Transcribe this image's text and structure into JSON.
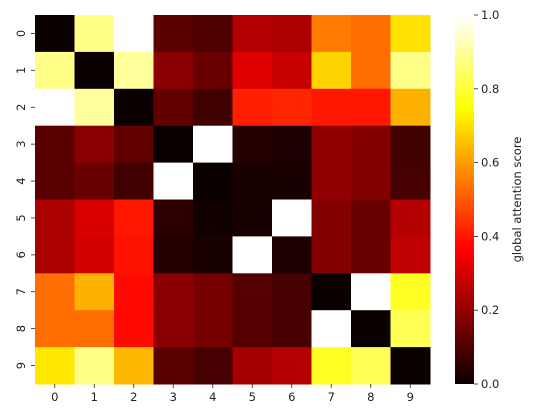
{
  "chart_data": {
    "type": "heatmap",
    "x_labels": [
      "0",
      "1",
      "2",
      "3",
      "4",
      "5",
      "6",
      "7",
      "8",
      "9"
    ],
    "y_labels": [
      "0",
      "1",
      "2",
      "3",
      "4",
      "5",
      "6",
      "7",
      "8",
      "9"
    ],
    "values": [
      [
        0.0,
        0.88,
        1.0,
        0.12,
        0.1,
        0.25,
        0.24,
        0.55,
        0.53,
        0.7
      ],
      [
        0.88,
        0.0,
        0.9,
        0.19,
        0.14,
        0.32,
        0.28,
        0.68,
        0.53,
        0.88
      ],
      [
        1.0,
        0.9,
        0.0,
        0.13,
        0.08,
        0.41,
        0.42,
        0.4,
        0.4,
        0.63
      ],
      [
        0.12,
        0.19,
        0.13,
        0.0,
        1.0,
        0.04,
        0.03,
        0.2,
        0.18,
        0.08
      ],
      [
        0.12,
        0.14,
        0.08,
        1.0,
        0.0,
        0.02,
        0.02,
        0.2,
        0.18,
        0.09
      ],
      [
        0.24,
        0.31,
        0.4,
        0.05,
        0.01,
        0.02,
        1.0,
        0.18,
        0.14,
        0.25
      ],
      [
        0.24,
        0.3,
        0.39,
        0.04,
        0.02,
        1.0,
        0.03,
        0.18,
        0.14,
        0.27
      ],
      [
        0.53,
        0.63,
        0.38,
        0.19,
        0.16,
        0.11,
        0.09,
        0.0,
        1.0,
        0.78
      ],
      [
        0.53,
        0.53,
        0.38,
        0.19,
        0.16,
        0.11,
        0.09,
        1.0,
        0.0,
        0.83
      ],
      [
        0.71,
        0.88,
        0.64,
        0.12,
        0.09,
        0.23,
        0.25,
        0.78,
        0.83,
        0.0
      ]
    ],
    "colormap": "hot",
    "vmin": 0.0,
    "vmax": 1.0,
    "colorbar": {
      "label": "global attention score",
      "ticks": [
        0.0,
        0.2,
        0.4,
        0.6,
        0.8,
        1.0
      ],
      "tick_labels": [
        "0.0",
        "0.2",
        "0.4",
        "0.6",
        "0.8",
        "1.0"
      ]
    }
  }
}
